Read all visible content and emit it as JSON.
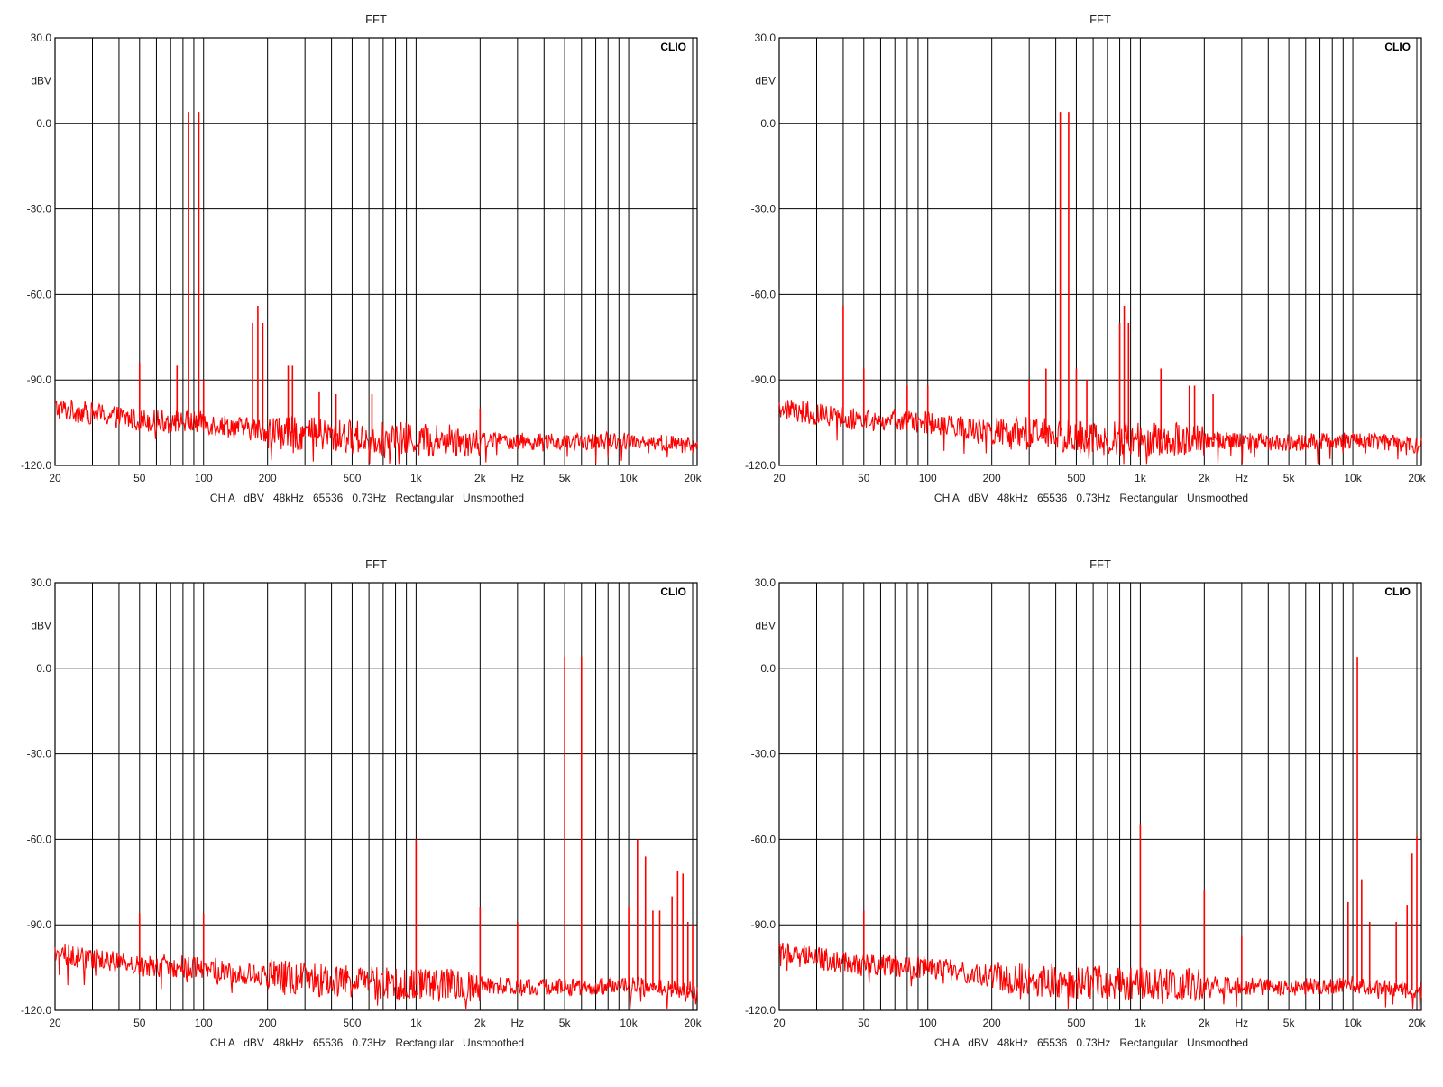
{
  "panels": [
    {
      "title": "FFT",
      "brand": "CLIO",
      "ylabel": "dBV",
      "info": "CH A   dBV   48kHz   65536   0.73Hz   Rectangular   Unsmoothed",
      "xunit": "Hz",
      "yticks": [
        "30.0",
        "0.0",
        "-30.0",
        "-60.0",
        "-90.0",
        "-120.0"
      ],
      "xticks": [
        "20",
        "50",
        "100",
        "200",
        "500",
        "1k",
        "2k",
        "5k",
        "10k",
        "20k"
      ]
    },
    {
      "title": "FFT",
      "brand": "CLIO",
      "ylabel": "dBV",
      "info": "CH A   dBV   48kHz   65536   0.73Hz   Rectangular   Unsmoothed",
      "xunit": "Hz",
      "yticks": [
        "30.0",
        "0.0",
        "-30.0",
        "-60.0",
        "-90.0",
        "-120.0"
      ],
      "xticks": [
        "20",
        "50",
        "100",
        "200",
        "500",
        "1k",
        "2k",
        "5k",
        "10k",
        "20k"
      ]
    },
    {
      "title": "FFT",
      "brand": "CLIO",
      "ylabel": "dBV",
      "info": "CH A   dBV   48kHz   65536   0.73Hz   Rectangular   Unsmoothed",
      "xunit": "Hz",
      "yticks": [
        "30.0",
        "0.0",
        "-30.0",
        "-60.0",
        "-90.0",
        "-120.0"
      ],
      "xticks": [
        "20",
        "50",
        "100",
        "200",
        "500",
        "1k",
        "2k",
        "5k",
        "10k",
        "20k"
      ]
    },
    {
      "title": "FFT",
      "brand": "CLIO",
      "ylabel": "dBV",
      "info": "CH A   dBV   48kHz   65536   0.73Hz   Rectangular   Unsmoothed",
      "xunit": "Hz",
      "yticks": [
        "30.0",
        "0.0",
        "-30.0",
        "-60.0",
        "-90.0",
        "-120.0"
      ],
      "xticks": [
        "20",
        "50",
        "100",
        "200",
        "500",
        "1k",
        "2k",
        "5k",
        "10k",
        "20k"
      ]
    }
  ],
  "chart_data": [
    {
      "type": "line",
      "title": "FFT",
      "xlabel": "Hz",
      "ylabel": "dBV",
      "xscale": "log",
      "xlim": [
        20,
        21000
      ],
      "ylim": [
        -120,
        30
      ],
      "grid": true,
      "color": "#ff0000",
      "noise_floor": [
        [
          20,
          -100
        ],
        [
          50,
          -104
        ],
        [
          100,
          -105
        ],
        [
          200,
          -108
        ],
        [
          500,
          -110
        ],
        [
          1000,
          -111
        ],
        [
          2000,
          -111
        ],
        [
          5000,
          -112
        ],
        [
          10000,
          -111
        ],
        [
          20000,
          -113
        ]
      ],
      "peaks": [
        [
          50,
          -84
        ],
        [
          75,
          -85
        ],
        [
          85,
          4
        ],
        [
          95,
          4
        ],
        [
          100,
          -90
        ],
        [
          170,
          -70
        ],
        [
          180,
          -64
        ],
        [
          190,
          -70
        ],
        [
          250,
          -85
        ],
        [
          262,
          -85
        ],
        [
          350,
          -94
        ],
        [
          420,
          -95
        ],
        [
          620,
          -95
        ],
        [
          2000,
          -100
        ]
      ]
    },
    {
      "type": "line",
      "title": "FFT",
      "xlabel": "Hz",
      "ylabel": "dBV",
      "xscale": "log",
      "xlim": [
        20,
        21000
      ],
      "ylim": [
        -120,
        30
      ],
      "grid": true,
      "color": "#ff0000",
      "noise_floor": [
        [
          20,
          -100
        ],
        [
          50,
          -104
        ],
        [
          100,
          -105
        ],
        [
          200,
          -108
        ],
        [
          500,
          -110
        ],
        [
          1000,
          -111
        ],
        [
          2000,
          -111
        ],
        [
          5000,
          -112
        ],
        [
          10000,
          -111
        ],
        [
          20000,
          -113
        ]
      ],
      "peaks": [
        [
          40,
          -64
        ],
        [
          50,
          -86
        ],
        [
          80,
          -92
        ],
        [
          100,
          -92
        ],
        [
          300,
          -90
        ],
        [
          360,
          -86
        ],
        [
          420,
          4
        ],
        [
          460,
          4
        ],
        [
          500,
          -86
        ],
        [
          560,
          -90
        ],
        [
          800,
          -70
        ],
        [
          840,
          -64
        ],
        [
          880,
          -70
        ],
        [
          1250,
          -86
        ],
        [
          1700,
          -92
        ],
        [
          1800,
          -92
        ],
        [
          2200,
          -95
        ]
      ]
    },
    {
      "type": "line",
      "title": "FFT",
      "xlabel": "Hz",
      "ylabel": "dBV",
      "xscale": "log",
      "xlim": [
        20,
        21000
      ],
      "ylim": [
        -120,
        30
      ],
      "grid": true,
      "color": "#ff0000",
      "noise_floor": [
        [
          20,
          -100
        ],
        [
          50,
          -104
        ],
        [
          100,
          -105
        ],
        [
          200,
          -108
        ],
        [
          500,
          -110
        ],
        [
          1000,
          -111
        ],
        [
          2000,
          -111
        ],
        [
          5000,
          -112
        ],
        [
          10000,
          -111
        ],
        [
          20000,
          -113
        ]
      ],
      "peaks": [
        [
          50,
          -86
        ],
        [
          100,
          -86
        ],
        [
          1000,
          -60
        ],
        [
          2000,
          -84
        ],
        [
          3000,
          -89
        ],
        [
          5000,
          4
        ],
        [
          6000,
          4
        ],
        [
          10000,
          -84
        ],
        [
          11000,
          -60
        ],
        [
          12000,
          -66
        ],
        [
          13000,
          -85
        ],
        [
          14000,
          -85
        ],
        [
          16000,
          -80
        ],
        [
          17000,
          -71
        ],
        [
          18000,
          -72
        ],
        [
          19000,
          -89
        ],
        [
          20000,
          -90
        ]
      ]
    },
    {
      "type": "line",
      "title": "FFT",
      "xlabel": "Hz",
      "ylabel": "dBV",
      "xscale": "log",
      "xlim": [
        20,
        21000
      ],
      "ylim": [
        -120,
        30
      ],
      "grid": true,
      "color": "#ff0000",
      "noise_floor": [
        [
          20,
          -100
        ],
        [
          50,
          -104
        ],
        [
          100,
          -105
        ],
        [
          200,
          -108
        ],
        [
          500,
          -110
        ],
        [
          1000,
          -111
        ],
        [
          2000,
          -111
        ],
        [
          5000,
          -112
        ],
        [
          10000,
          -111
        ],
        [
          20000,
          -113
        ]
      ],
      "peaks": [
        [
          50,
          -85
        ],
        [
          1000,
          -55
        ],
        [
          2000,
          -78
        ],
        [
          3000,
          -94
        ],
        [
          9500,
          -82
        ],
        [
          10500,
          4
        ],
        [
          11000,
          -74
        ],
        [
          12000,
          -89
        ],
        [
          16000,
          -89
        ],
        [
          18000,
          -83
        ],
        [
          19000,
          -65
        ],
        [
          20000,
          -59
        ]
      ]
    }
  ]
}
